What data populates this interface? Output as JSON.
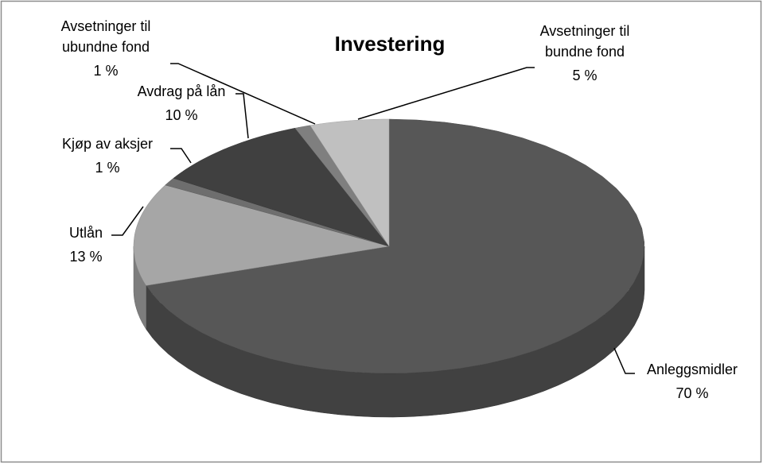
{
  "chart_data": {
    "type": "pie3d",
    "title": "Investering",
    "categories": [
      "Anleggsmidler",
      "Utlån",
      "Kjøp av aksjer",
      "Avdrag på lån",
      "Avsetninger til ubundne fond",
      "Avsetninger til bundne fond"
    ],
    "values": [
      70,
      13,
      1,
      10,
      1,
      5
    ],
    "value_labels": [
      "70 %",
      "13 %",
      "1 %",
      "10 %",
      "1 %",
      "5 %"
    ],
    "colors": [
      "#575757",
      "#a6a6a6",
      "#6e6e6e",
      "#404040",
      "#7f7f7f",
      "#c0c0c0"
    ]
  }
}
